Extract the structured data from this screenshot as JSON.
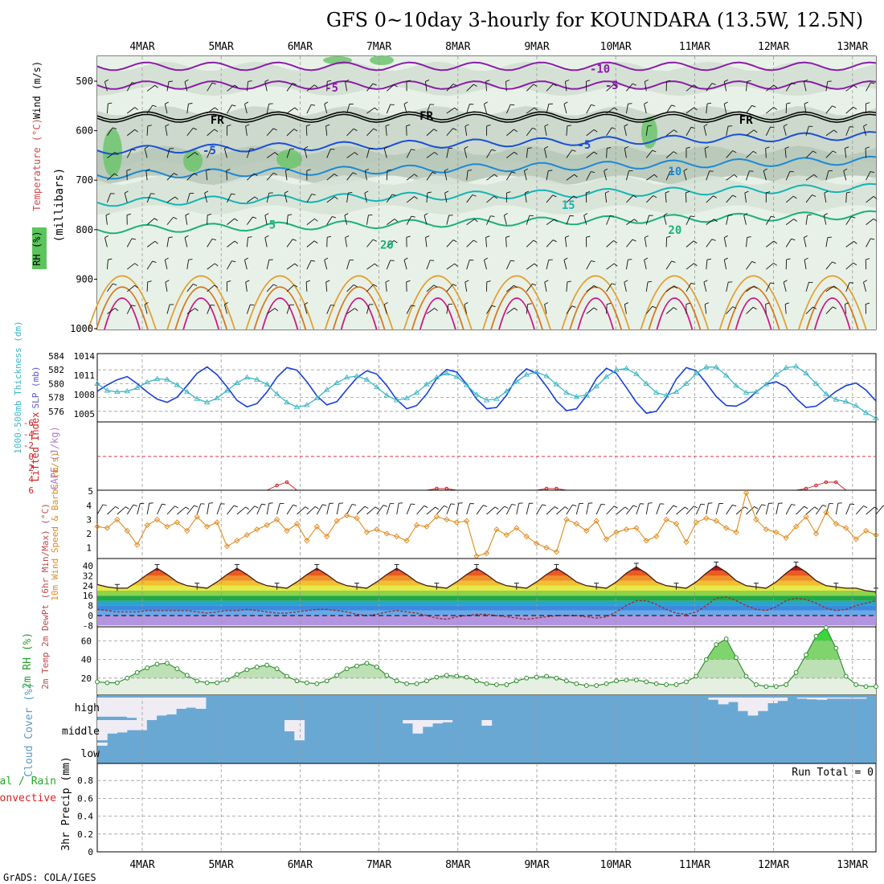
{
  "title": "GFS 0~10day 3-hourly for KOUNDARA (13.5W, 12.5N)",
  "credit": "GrADS: COLA/IGES",
  "x_ticks": [
    "4MAR",
    "5MAR",
    "6MAR",
    "7MAR",
    "8MAR",
    "9MAR",
    "10MAR",
    "11MAR",
    "12MAR",
    "13MAR"
  ],
  "chart_data": [
    {
      "type": "heatmap",
      "ylabel_parts": [
        "Wind (m/s)",
        "Temperature (°C)",
        "RH (%)",
        "(millibars)"
      ],
      "y_ticks": [
        "500",
        "600",
        "700",
        "800",
        "900",
        "1000"
      ],
      "ylim": [
        1000,
        450
      ],
      "contour_labels": [
        {
          "text": "-10",
          "day": 5.8,
          "p": 475
        },
        {
          "text": "-5",
          "day": 2.4,
          "p": 513
        },
        {
          "text": "-5",
          "day": 5.95,
          "p": 508
        },
        {
          "text": "FR",
          "day": 0.95,
          "p": 578
        },
        {
          "text": "FR",
          "day": 3.6,
          "p": 570
        },
        {
          "text": "FR",
          "day": 7.65,
          "p": 578
        },
        {
          "text": "-5",
          "day": 0.85,
          "p": 640
        },
        {
          "text": "-5",
          "day": 5.6,
          "p": 628
        },
        {
          "text": "10",
          "day": 6.75,
          "p": 682
        },
        {
          "text": "15",
          "day": 5.4,
          "p": 750
        },
        {
          "text": "5",
          "day": 1.65,
          "p": 790
        },
        {
          "text": "20",
          "day": 6.75,
          "p": 800
        },
        {
          "text": "20",
          "day": 3.1,
          "p": 830
        }
      ]
    },
    {
      "type": "line",
      "ylabel_left": "1000-500mb Thickness (dm)",
      "ylabel_right": "SLP (mb)",
      "y_ticks_left": [
        "584",
        "582",
        "580",
        "578",
        "576"
      ],
      "y_ticks_right": [
        "1014",
        "1011",
        "1008",
        "1005"
      ],
      "series": [
        {
          "name": "SLP (mb)",
          "color": "#1a3fd6",
          "marker": "none",
          "values": [
            1008.5,
            1009.5,
            1010.3,
            1010.8,
            1009.7,
            1008.4,
            1007.3,
            1006.8,
            1007.6,
            1009.4,
            1011.3,
            1012.3,
            1011.1,
            1009.2,
            1007.1,
            1006.1,
            1006.6,
            1008.4,
            1010.7,
            1012.2,
            1011.8,
            1010.0,
            1007.8,
            1006.4,
            1006.9,
            1008.8,
            1010.6,
            1011.7,
            1011.2,
            1009.4,
            1007.2,
            1005.8,
            1006.3,
            1008.1,
            1010.5,
            1011.9,
            1011.5,
            1009.6,
            1007.3,
            1005.8,
            1006.0,
            1007.9,
            1010.6,
            1012.0,
            1011.3,
            1009.3,
            1007.0,
            1005.5,
            1005.8,
            1007.8,
            1010.5,
            1012.1,
            1011.3,
            1009.1,
            1006.8,
            1005.1,
            1005.4,
            1007.5,
            1010.4,
            1012.2,
            1011.7,
            1009.8,
            1007.7,
            1006.3,
            1006.2,
            1007.0,
            1008.4,
            1009.6,
            1010.0,
            1009.2,
            1007.4,
            1006.0,
            1006.2,
            1007.3,
            1008.5,
            1009.4,
            1009.8,
            1008.7,
            1007.0
          ]
        },
        {
          "name": "Thickness (dm)",
          "color": "#3cb6c4",
          "marker": "triangle",
          "values": [
            580.0,
            579.0,
            578.8,
            578.9,
            579.4,
            580.2,
            580.7,
            580.6,
            579.8,
            578.8,
            577.8,
            577.3,
            577.9,
            579.0,
            580.1,
            580.9,
            580.6,
            579.9,
            578.5,
            577.3,
            576.6,
            576.9,
            577.9,
            579.1,
            580.1,
            580.9,
            581.1,
            580.6,
            579.5,
            578.3,
            577.6,
            577.9,
            578.7,
            579.9,
            580.9,
            581.5,
            581.0,
            579.8,
            578.4,
            577.6,
            577.8,
            578.9,
            580.3,
            581.3,
            581.7,
            581.1,
            579.9,
            578.7,
            578.1,
            578.4,
            579.6,
            581.0,
            582.0,
            582.2,
            581.4,
            580.0,
            578.7,
            578.3,
            578.8,
            580.0,
            581.5,
            582.4,
            582.4,
            581.2,
            579.7,
            578.7,
            578.8,
            579.9,
            581.3,
            582.3,
            582.5,
            581.5,
            580.0,
            578.5,
            577.7,
            577.4,
            576.8,
            575.8,
            575.0
          ]
        }
      ]
    },
    {
      "type": "line",
      "ylabel_left": "Lifted Index",
      "ylabel_right": "CAPE (J/kg)",
      "y_ticks_left": [
        "-6",
        "-4",
        "-2",
        "0",
        "2",
        "4",
        "6"
      ],
      "y_ticks_right": [
        "5"
      ],
      "series": [
        {
          "name": "CAPE (J/kg)",
          "color": "#cc2222",
          "marker": "circle",
          "values": [
            0,
            0,
            0,
            0,
            0,
            0,
            0,
            0,
            0,
            0,
            0,
            0,
            0,
            0,
            0,
            0,
            0,
            0,
            3,
            5,
            0,
            0,
            0,
            0,
            0,
            0,
            0,
            0,
            0,
            0,
            0,
            0,
            0,
            0,
            1,
            1,
            0,
            0,
            0,
            0,
            0,
            0,
            0,
            0,
            0,
            1,
            1,
            0,
            0,
            0,
            0,
            0,
            0,
            0,
            0,
            0,
            0,
            0,
            0,
            0,
            0,
            0,
            0,
            0,
            0,
            0,
            0,
            0,
            0,
            0,
            0,
            1,
            3,
            5,
            5,
            0,
            0,
            0,
            0
          ]
        }
      ]
    },
    {
      "type": "line",
      "ylabel": "10m Wind Speed & Barbs (m/s)",
      "y_ticks": [
        "4",
        "3",
        "2",
        "1"
      ],
      "series": [
        {
          "name": "10m Wind Speed (m/s)",
          "color": "#e08a1e",
          "marker": "diamond",
          "values": [
            2.5,
            2.4,
            3.0,
            2.2,
            1.2,
            2.6,
            3.0,
            2.5,
            2.8,
            2.2,
            3.2,
            2.5,
            2.8,
            1.1,
            1.5,
            1.9,
            2.3,
            2.6,
            3.0,
            2.2,
            2.7,
            1.5,
            2.5,
            1.8,
            2.9,
            3.3,
            3.1,
            2.1,
            2.3,
            2.0,
            1.8,
            1.5,
            2.6,
            2.5,
            3.2,
            3.0,
            2.8,
            2.9,
            0.4,
            0.6,
            2.3,
            1.9,
            2.4,
            1.8,
            1.3,
            1.0,
            0.7,
            3.0,
            2.7,
            2.2,
            2.9,
            1.6,
            2.1,
            2.3,
            2.4,
            1.5,
            1.8,
            3.0,
            2.7,
            1.4,
            2.8,
            3.1,
            2.9,
            2.4,
            2.1,
            4.9,
            3.0,
            2.3,
            2.1,
            1.7,
            2.5,
            3.2,
            2.0,
            3.5,
            2.7,
            2.4,
            1.6,
            2.2,
            1.9
          ]
        }
      ]
    },
    {
      "type": "area",
      "ylabel": "2m Temp 2m DewPt (6hr Min/Max) (°C)",
      "y_ticks": [
        "40",
        "32",
        "24",
        "16",
        "8",
        "0",
        "-8"
      ],
      "series": [
        {
          "name": "2m Temp (°C)",
          "color": "#3d1a10",
          "values": [
            25,
            23,
            22,
            22,
            27,
            33,
            38,
            33,
            27,
            24,
            23,
            22,
            27,
            33,
            38,
            33,
            27,
            24,
            23,
            22,
            27,
            33,
            38,
            33,
            27,
            24,
            23,
            22,
            27,
            33,
            38,
            33,
            27,
            24,
            23,
            22,
            27,
            33,
            38,
            33,
            27,
            24,
            23,
            22,
            27,
            33,
            38,
            33,
            27,
            24,
            23,
            22,
            27,
            34,
            39,
            34,
            27,
            24,
            23,
            22,
            27,
            34,
            40,
            35,
            28,
            24,
            23,
            22,
            27,
            34,
            40,
            35,
            28,
            24,
            23,
            22,
            22,
            20,
            19
          ]
        },
        {
          "name": "2m DewPt (°C)",
          "color": "#9a3030",
          "values": [
            5,
            4,
            3,
            3,
            3,
            4,
            4,
            4,
            4,
            4,
            3,
            2,
            3,
            4,
            4,
            5,
            4,
            3,
            2,
            2,
            3,
            4,
            5,
            5,
            4,
            3,
            1,
            0,
            1,
            3,
            4,
            3,
            2,
            0,
            -2,
            -3,
            -1,
            0,
            1,
            1,
            0,
            -1,
            -2,
            -3,
            -2,
            -1,
            0,
            0,
            0,
            -1,
            -2,
            -1,
            3,
            8,
            12,
            12,
            9,
            5,
            2,
            1,
            3,
            8,
            14,
            15,
            12,
            8,
            5,
            4,
            7,
            12,
            14,
            13,
            10,
            6,
            4,
            5,
            8,
            10,
            12
          ]
        }
      ]
    },
    {
      "type": "area",
      "ylabel": "2m RH (%)",
      "y_ticks": [
        "60",
        "40",
        "20"
      ],
      "series": [
        {
          "name": "2m RH (%)",
          "color": "#2a8a2a",
          "values": [
            16,
            15,
            15,
            20,
            26,
            31,
            35,
            36,
            30,
            23,
            17,
            15,
            15,
            18,
            24,
            29,
            32,
            34,
            30,
            22,
            17,
            15,
            14,
            17,
            23,
            30,
            33,
            36,
            32,
            23,
            17,
            14,
            14,
            17,
            21,
            23,
            22,
            21,
            17,
            14,
            13,
            13,
            17,
            20,
            21,
            22,
            20,
            17,
            14,
            12,
            12,
            14,
            17,
            18,
            18,
            16,
            14,
            13,
            13,
            16,
            22,
            40,
            56,
            62,
            42,
            22,
            13,
            11,
            11,
            13,
            26,
            45,
            65,
            74,
            52,
            22,
            13,
            11,
            11
          ]
        }
      ]
    },
    {
      "type": "bar",
      "ylabel": "Cloud Cover (%)",
      "y_ticks": [
        "high",
        "middle",
        "low"
      ],
      "background_color": "#6aa8d4",
      "bar_color": "#f0ecf4",
      "series": [
        {
          "name": "high",
          "values": [
            0.85,
            0.85,
            0.85,
            0.9,
            1,
            1,
            0.8,
            0.75,
            0.5,
            0.45,
            0.5,
            0,
            0,
            0,
            0,
            0,
            0,
            0,
            0,
            0,
            0,
            0,
            0,
            0,
            0,
            0,
            0,
            0,
            0,
            0,
            0,
            0,
            0,
            0,
            0,
            0,
            0,
            0,
            0,
            0,
            0,
            0,
            0,
            0,
            0,
            0,
            0,
            0,
            0,
            0,
            0,
            0,
            0,
            0,
            0,
            0,
            0,
            0,
            0,
            0,
            0,
            0,
            0.1,
            0.3,
            0.2,
            0.6,
            0.8,
            0.6,
            0.25,
            0.15,
            0,
            0.05,
            0.08,
            0.1,
            0.05,
            0.05,
            0.05,
            0.05,
            0
          ]
        },
        {
          "name": "middle",
          "values": [
            0.9,
            0.6,
            0.55,
            0.45,
            0.45,
            0,
            0,
            0,
            0,
            0,
            0,
            0,
            0,
            0,
            0,
            0,
            0,
            0,
            0,
            0.5,
            0.9,
            0,
            0,
            0,
            0,
            0,
            0,
            0,
            0,
            0,
            0,
            0.15,
            0.6,
            0.3,
            0.15,
            0.1,
            0,
            0,
            0,
            0.25,
            0,
            0,
            0,
            0,
            0,
            0,
            0,
            0,
            0,
            0,
            0,
            0,
            0,
            0,
            0,
            0,
            0,
            0,
            0,
            0,
            0,
            0,
            0,
            0,
            0,
            0,
            0,
            0,
            0,
            0,
            0,
            0,
            0,
            0,
            0,
            0,
            0,
            0,
            0
          ]
        },
        {
          "name": "low",
          "values": [
            0.15,
            0,
            0,
            0,
            0,
            0,
            0,
            0,
            0,
            0,
            0,
            0,
            0,
            0,
            0,
            0,
            0,
            0,
            0,
            0,
            0,
            0,
            0,
            0,
            0,
            0,
            0,
            0,
            0,
            0,
            0,
            0,
            0,
            0,
            0,
            0,
            0,
            0,
            0,
            0,
            0,
            0,
            0,
            0,
            0,
            0,
            0,
            0,
            0,
            0,
            0,
            0,
            0,
            0,
            0,
            0,
            0,
            0,
            0,
            0,
            0,
            0,
            0,
            0,
            0,
            0,
            0,
            0,
            0,
            0,
            0,
            0,
            0,
            0,
            0,
            0,
            0,
            0,
            0
          ]
        }
      ]
    },
    {
      "type": "bar",
      "ylabel_parts": [
        "Total / Rain",
        "Convective",
        "3hr Precip (mm)"
      ],
      "y_ticks": [
        "0.8",
        "0.6",
        "0.4",
        "0.2",
        "0"
      ],
      "ylim": [
        0,
        1
      ],
      "run_total": "Run Total = 0",
      "series": [
        {
          "name": "Total / Rain",
          "color": "#22aa22",
          "values": []
        },
        {
          "name": "Convective",
          "color": "#dd2222",
          "values": []
        }
      ]
    }
  ]
}
